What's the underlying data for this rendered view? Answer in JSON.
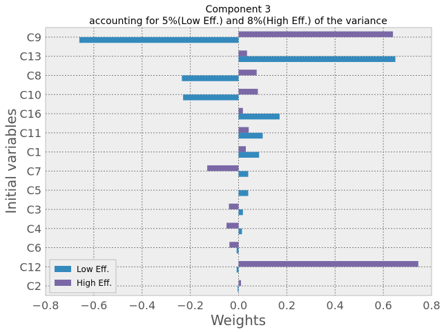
{
  "chart_data": {
    "type": "bar",
    "orientation": "horizontal",
    "title": "Component 3",
    "subtitle": "accounting for  5%(Low Eff.) and  8%(High Eff.) of the variance",
    "xlabel": "Weights",
    "ylabel": "Initial variables",
    "xlim": [
      -0.8,
      0.8
    ],
    "xticks": [
      -0.8,
      -0.6,
      -0.4,
      -0.2,
      0.0,
      0.2,
      0.4,
      0.6,
      0.8
    ],
    "xtick_labels": [
      "−0.8",
      "−0.6",
      "−0.4",
      "−0.2",
      "0.0",
      "0.2",
      "0.4",
      "0.6",
      "0.8"
    ],
    "categories": [
      "C9",
      "C13",
      "C8",
      "C10",
      "C16",
      "C11",
      "C1",
      "C7",
      "C5",
      "C3",
      "C4",
      "C6",
      "C12",
      "C2"
    ],
    "series": [
      {
        "name": "Low Eff.",
        "color": "#348abd",
        "values": [
          -0.66,
          0.65,
          -0.235,
          -0.23,
          0.17,
          0.1,
          0.085,
          0.04,
          0.04,
          0.018,
          0.014,
          -0.008,
          -0.008,
          -0.004
        ]
      },
      {
        "name": "High Eff.",
        "color": "#7a68a6",
        "values": [
          0.64,
          0.035,
          0.075,
          0.08,
          0.018,
          0.042,
          0.03,
          -0.13,
          0.0,
          -0.04,
          -0.05,
          -0.038,
          0.745,
          0.01
        ]
      }
    ],
    "grid": true,
    "legend_position": "lower-left",
    "background_color": "#eeeeee"
  }
}
